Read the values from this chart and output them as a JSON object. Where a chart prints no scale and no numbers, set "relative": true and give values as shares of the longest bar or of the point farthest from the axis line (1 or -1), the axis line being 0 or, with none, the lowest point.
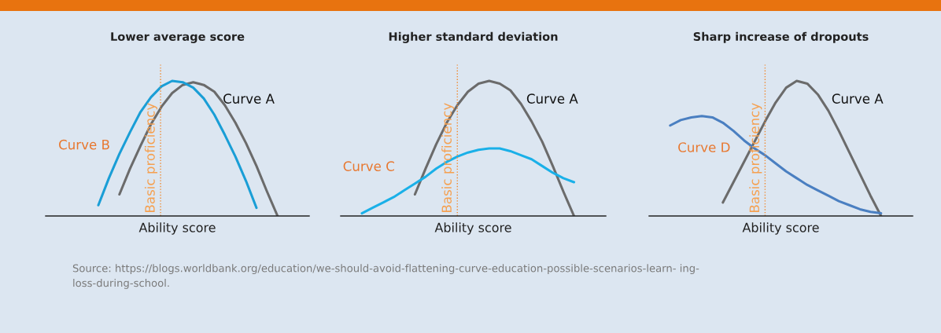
{
  "chart_data": [
    {
      "type": "line",
      "title": "Lower average score",
      "xlabel": "Ability score",
      "relative": true,
      "tick_labels": false,
      "categories": [
        null,
        null,
        null,
        null,
        null,
        null,
        null,
        null,
        null,
        null,
        null,
        null,
        null,
        null,
        null,
        null,
        null,
        null,
        null,
        null,
        null,
        null,
        null,
        null,
        null,
        null
      ],
      "series": [
        {
          "name": "Curve A",
          "color": "#6b6b6b",
          "values": [
            null,
            null,
            null,
            null,
            null,
            null,
            null,
            0.16,
            0.35,
            0.52,
            0.68,
            0.81,
            0.91,
            0.97,
            0.99,
            0.97,
            0.92,
            0.82,
            0.69,
            0.54,
            0.37,
            0.18,
            0,
            null,
            null,
            null
          ]
        },
        {
          "name": "Curve B",
          "color": "#1a9ed6",
          "values": [
            null,
            null,
            null,
            null,
            null,
            0.08,
            0.28,
            0.46,
            0.62,
            0.77,
            0.88,
            0.96,
            1.0,
            0.99,
            0.95,
            0.87,
            0.75,
            0.6,
            0.44,
            0.26,
            0.06,
            null,
            null,
            null,
            null,
            null
          ]
        }
      ],
      "annotations": [
        "Basic proficiency",
        "Source: https://blogs.worldbank.org/education/we-should-avoid-flattening-curve-education-possible-scenarios-learn- ing-\nloss-during-school."
      ]
    },
    {
      "type": "line",
      "title": "Higher standard deviation",
      "xlabel": "Ability score",
      "relative": true,
      "tick_labels": false,
      "categories": [
        null,
        null,
        null,
        null,
        null,
        null,
        null,
        null,
        null,
        null,
        null,
        null,
        null,
        null,
        null,
        null,
        null,
        null,
        null,
        null,
        null,
        null,
        null,
        null,
        null,
        null
      ],
      "series": [
        {
          "name": "Curve A",
          "color": "#6b6b6b",
          "values": [
            null,
            null,
            null,
            null,
            null,
            null,
            null,
            0.16,
            0.35,
            0.53,
            0.69,
            0.82,
            0.92,
            0.98,
            1.0,
            0.98,
            0.93,
            0.83,
            0.7,
            0.55,
            0.37,
            0.18,
            0,
            null,
            null,
            null
          ]
        },
        {
          "name": "Curve C",
          "color": "#1ab0e8",
          "values": [
            null,
            null,
            0.02,
            0.06,
            0.1,
            0.14,
            0.19,
            0.24,
            0.29,
            0.35,
            0.4,
            0.44,
            0.47,
            0.49,
            0.5,
            0.5,
            0.48,
            0.45,
            0.42,
            0.37,
            0.32,
            0.28,
            0.25,
            null,
            null,
            null
          ]
        }
      ],
      "annotations": [
        "Basic proficiency"
      ]
    },
    {
      "type": "line",
      "title": "Sharp increase of dropouts",
      "xlabel": "Ability score",
      "relative": true,
      "tick_labels": false,
      "categories": [
        null,
        null,
        null,
        null,
        null,
        null,
        null,
        null,
        null,
        null,
        null,
        null,
        null,
        null,
        null,
        null,
        null,
        null,
        null,
        null,
        null,
        null,
        null,
        null,
        null,
        null
      ],
      "series": [
        {
          "name": "Curve A",
          "color": "#6b6b6b",
          "values": [
            null,
            null,
            null,
            null,
            null,
            null,
            null,
            0.1,
            0.25,
            0.4,
            0.55,
            0.7,
            0.84,
            0.95,
            1.0,
            0.98,
            0.9,
            0.78,
            0.63,
            0.47,
            0.31,
            0.15,
            0,
            null,
            null,
            null
          ]
        },
        {
          "name": "Curve D",
          "color": "#4a7fc1",
          "values": [
            null,
            null,
            0.67,
            0.71,
            0.73,
            0.74,
            0.73,
            0.69,
            0.63,
            0.56,
            0.5,
            0.45,
            0.39,
            0.33,
            0.28,
            0.23,
            0.19,
            0.15,
            0.11,
            0.08,
            0.05,
            0.03,
            0.02,
            null,
            null,
            null
          ]
        }
      ],
      "annotations": [
        "Basic proficiency"
      ]
    }
  ]
}
